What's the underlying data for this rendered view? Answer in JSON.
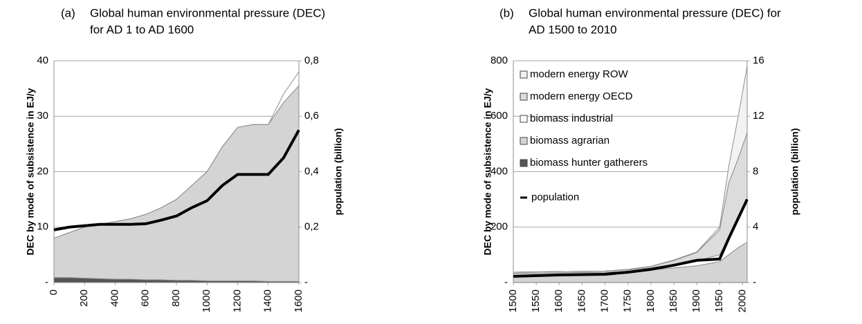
{
  "chart_data": [
    {
      "type": "stacked-area",
      "panel_label": "(a)",
      "title_lines": [
        "Global human environmental pressure (DEC)",
        "for AD 1 to AD 1600"
      ],
      "y_label": "DEC by mode of subsistence in EJ/y",
      "y2_label": "population  (billion)",
      "x": [
        0,
        100,
        200,
        300,
        400,
        500,
        600,
        700,
        800,
        900,
        1000,
        1100,
        1200,
        1300,
        1400,
        1500,
        1600
      ],
      "xlim": [
        0,
        1600
      ],
      "xticks": [
        0,
        200,
        400,
        600,
        800,
        1000,
        1200,
        1400,
        1600
      ],
      "ylim": [
        0,
        40
      ],
      "yticks": [
        {
          "value": 0,
          "label": "-"
        },
        10,
        20,
        30,
        40
      ],
      "y2lim": [
        0,
        0.8
      ],
      "y2ticks": [
        {
          "value": 0,
          "label": "-"
        },
        {
          "value": 0.2,
          "label": "0,2"
        },
        {
          "value": 0.4,
          "label": "0,4"
        },
        {
          "value": 0.6,
          "label": "0,6"
        },
        {
          "value": 0.8,
          "label": "0,8"
        }
      ],
      "grid": true,
      "series": [
        {
          "color": "#555555",
          "values": [
            0.9,
            0.9,
            0.8,
            0.7,
            0.6,
            0.6,
            0.5,
            0.5,
            0.4,
            0.4,
            0.3,
            0.3,
            0.3,
            0.3,
            0.2,
            0.2,
            0.2
          ]
        },
        {
          "color": "#d4d4d4",
          "values": [
            7.1,
            8.1,
            9.2,
            9.8,
            10.4,
            10.9,
            11.8,
            13,
            14.6,
            17.1,
            19.7,
            24.2,
            27.7,
            28.2,
            28.3,
            32.3,
            35.3
          ]
        },
        {
          "color": "#ffffff",
          "values": [
            0,
            0,
            0,
            0,
            0,
            0,
            0,
            0,
            0,
            0,
            0,
            0,
            0,
            0,
            0,
            1.5,
            2.5
          ]
        },
        {
          "axis": "y2",
          "color": "#000000",
          "values": [
            0.19,
            0.2,
            0.205,
            0.21,
            0.21,
            0.21,
            0.212,
            0.225,
            0.24,
            0.27,
            0.295,
            0.35,
            0.39,
            0.39,
            0.39,
            0.45,
            0.55
          ]
        }
      ]
    },
    {
      "type": "stacked-area",
      "panel_label": "(b)",
      "title_lines": [
        "Global human environmental pressure (DEC) for",
        "AD 1500 to 2010"
      ],
      "y_label": "DEC by mode of subsistence in EJ/y",
      "y2_label": "population  (billion)",
      "x": [
        1500,
        1600,
        1700,
        1750,
        1800,
        1850,
        1900,
        1950,
        1970,
        1990,
        2010
      ],
      "xlim": [
        1500,
        2010
      ],
      "xticks": [
        1500,
        1550,
        1600,
        1650,
        1700,
        1750,
        1800,
        1850,
        1900,
        1950,
        2000
      ],
      "ylim": [
        0,
        800
      ],
      "yticks": [
        {
          "value": 0,
          "label": "-"
        },
        200,
        400,
        600,
        800
      ],
      "y2lim": [
        0,
        16
      ],
      "y2ticks": [
        {
          "value": 0,
          "label": "-"
        },
        4,
        8,
        12,
        16
      ],
      "grid": true,
      "legend": "top-left",
      "series": [
        {
          "name": "biomass hunter gatherers",
          "color": "#555555",
          "values": [
            0.5,
            0.5,
            0.5,
            0.5,
            0.5,
            0.5,
            0.5,
            0.5,
            0.5,
            0.5,
            0.5
          ]
        },
        {
          "name": "biomass agrarian",
          "color": "#d4d4d4",
          "values": [
            33,
            35,
            37,
            40,
            45,
            52,
            60,
            75,
            100,
            125,
            145
          ]
        },
        {
          "name": "biomass industrial",
          "color": "#ffffff",
          "values": [
            4,
            4,
            4,
            5,
            8,
            12,
            18,
            25,
            60,
            100,
            150
          ]
        },
        {
          "name": "modern energy OECD",
          "color": "#dcdcdc",
          "values": [
            0,
            0,
            0,
            2,
            5,
            15,
            30,
            90,
            200,
            220,
            245
          ]
        },
        {
          "name": "modern energy ROW",
          "color": "#f2f2f2",
          "values": [
            0,
            0,
            0,
            0,
            0,
            2,
            2,
            10,
            60,
            150,
            240
          ]
        },
        {
          "name": "population",
          "axis": "y2",
          "color": "#000000",
          "values": [
            0.45,
            0.55,
            0.6,
            0.75,
            0.95,
            1.25,
            1.6,
            1.7,
            3.2,
            4.6,
            6.0
          ]
        }
      ]
    }
  ]
}
